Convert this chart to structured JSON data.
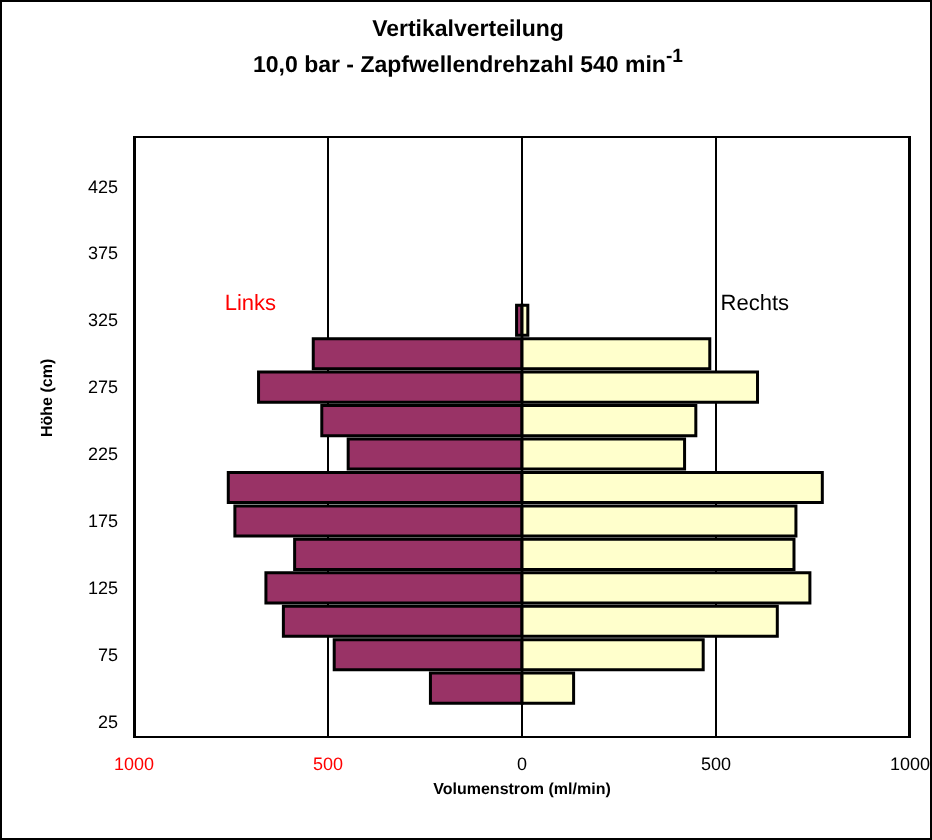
{
  "chart_data": {
    "type": "bar",
    "orientation": "horizontal",
    "stacked": true,
    "title": "Vertikalverteilung",
    "subtitle": "10,0 bar - Zapfwellendrehzahl 540 min$^{-1}$",
    "xlabel": "Volumenstrom (ml/min)",
    "ylabel": "Höhe (cm)",
    "x": [
      50,
      75,
      100,
      125,
      150,
      175,
      200,
      225,
      250,
      275,
      300,
      325
    ],
    "series": [
      {
        "name": "Links",
        "color": "#993366",
        "values": [
          -236,
          -484,
          -615,
          -660,
          -586,
          -740,
          -757,
          -448,
          -516,
          -679,
          -538,
          -14
        ]
      },
      {
        "name": "Rechts",
        "color": "#ffffcc",
        "values": [
          133,
          467,
          658,
          742,
          701,
          706,
          774,
          419,
          448,
          607,
          484,
          15
        ]
      }
    ],
    "xlim": [
      -1000,
      1000
    ],
    "xticks": [
      {
        "value": -1000,
        "label": "1000"
      },
      {
        "value": -500,
        "label": "500"
      },
      0,
      500,
      1000
    ],
    "ylim": [
      12.5,
      462.5
    ],
    "yticks": [
      25,
      75,
      125,
      175,
      225,
      275,
      325,
      375,
      425
    ],
    "grid": "x"
  }
}
